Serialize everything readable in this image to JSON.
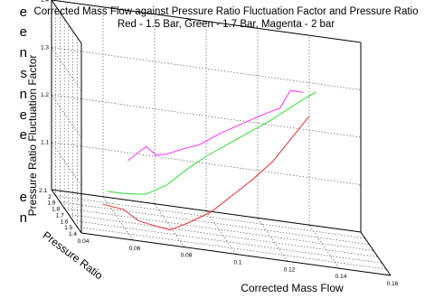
{
  "side_fragment": [
    "e",
    "e",
    "n",
    "s",
    "n",
    "e",
    "e",
    "",
    "e",
    "n"
  ],
  "chart_data": {
    "type": "line",
    "projection": "3d",
    "title": "Corrected Mass Flow against Pressure Ratio Fluctuation Factor and Pressure Ratio",
    "subtitle": "Red - 1.5 Bar, Green - 1.7 Bar, Magenta - 2 bar",
    "xlabel": "Corrected Mass Flow",
    "ylabel": "Pressure Ratio",
    "zlabel": "Pressure Ratio Fluctuation Factor",
    "xlim": [
      0.04,
      0.16
    ],
    "ylim": [
      1.4,
      2.1
    ],
    "zlim": [
      1.0,
      1.4
    ],
    "x_ticks": [
      "0.04",
      "0.06",
      "0.08",
      "0.1",
      "0.12",
      "0.14",
      "0.16"
    ],
    "y_ticks": [
      "1.4",
      "1.5",
      "1.6",
      "1.7",
      "1.8",
      "1.9",
      "2",
      "2.1"
    ],
    "z_ticks": [
      "1.1",
      "1.2",
      "1.3",
      "1.4"
    ],
    "grid": true,
    "series": [
      {
        "name": "1.5 Bar",
        "color": "#e03030",
        "x": [
          0.05,
          0.058,
          0.064,
          0.07,
          0.076,
          0.083,
          0.092,
          0.1,
          0.108,
          0.116,
          0.122,
          0.126,
          0.13
        ],
        "y": [
          1.5,
          1.5,
          1.5,
          1.5,
          1.5,
          1.5,
          1.5,
          1.5,
          1.5,
          1.5,
          1.5,
          1.5,
          1.5
        ],
        "z": [
          1.055,
          1.05,
          1.03,
          1.025,
          1.02,
          1.04,
          1.07,
          1.11,
          1.15,
          1.195,
          1.24,
          1.27,
          1.3
        ]
      },
      {
        "name": "1.7 Bar",
        "color": "#33dd33",
        "x": [
          0.055,
          0.062,
          0.07,
          0.078,
          0.086,
          0.094,
          0.102,
          0.11,
          0.118,
          0.125,
          0.131,
          0.136
        ],
        "y": [
          1.7,
          1.7,
          1.7,
          1.7,
          1.7,
          1.7,
          1.7,
          1.7,
          1.7,
          1.7,
          1.7,
          1.7
        ],
        "z": [
          1.06,
          1.06,
          1.065,
          1.09,
          1.13,
          1.165,
          1.195,
          1.225,
          1.255,
          1.285,
          1.31,
          1.33
        ]
      },
      {
        "name": "2 bar",
        "color": "#ff33ff",
        "x": [
          0.068,
          0.072,
          0.075,
          0.079,
          0.083,
          0.089,
          0.096,
          0.104,
          0.112,
          0.12,
          0.127,
          0.131,
          0.136
        ],
        "y": [
          2.0,
          2.0,
          2.0,
          2.0,
          2.0,
          2.0,
          2.0,
          2.0,
          2.0,
          2.0,
          2.0,
          2.0,
          2.0
        ],
        "z": [
          1.095,
          1.115,
          1.13,
          1.115,
          1.12,
          1.135,
          1.15,
          1.18,
          1.205,
          1.23,
          1.25,
          1.29,
          1.29
        ]
      }
    ]
  }
}
